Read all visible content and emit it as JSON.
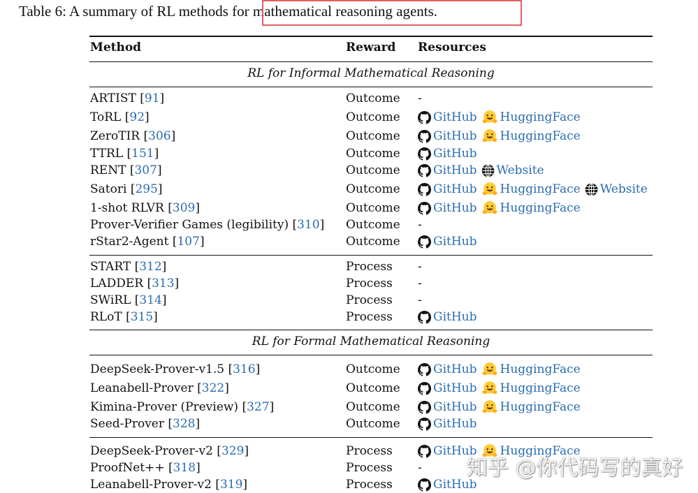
{
  "caption": "Table 6: A summary of RL methods for mathematical reasoning agents.",
  "colors": {
    "link": "#2a6cb0",
    "highlight_box": "#e06060",
    "huggingface": "#ffcc33"
  },
  "headers": {
    "method": "Method",
    "reward": "Reward",
    "resources": "Resources"
  },
  "sections": [
    {
      "title": "RL for Informal Mathematical Reasoning",
      "groups": [
        [
          {
            "method": "ARTIST",
            "ref": "91",
            "reward": "Outcome",
            "resources": []
          },
          {
            "method": "ToRL",
            "ref": "92",
            "reward": "Outcome",
            "resources": [
              {
                "type": "github",
                "label": "GitHub"
              },
              {
                "type": "huggingface",
                "label": "HuggingFace"
              }
            ]
          },
          {
            "method": "ZeroTIR",
            "ref": "306",
            "reward": "Outcome",
            "resources": [
              {
                "type": "github",
                "label": "GitHub"
              },
              {
                "type": "huggingface",
                "label": "HuggingFace"
              }
            ]
          },
          {
            "method": "TTRL",
            "ref": "151",
            "reward": "Outcome",
            "resources": [
              {
                "type": "github",
                "label": "GitHub"
              }
            ]
          },
          {
            "method": "RENT",
            "ref": "307",
            "reward": "Outcome",
            "resources": [
              {
                "type": "github",
                "label": "GitHub"
              },
              {
                "type": "website",
                "label": "Website"
              }
            ]
          },
          {
            "method": "Satori",
            "ref": "295",
            "reward": "Outcome",
            "resources": [
              {
                "type": "github",
                "label": "GitHub"
              },
              {
                "type": "huggingface",
                "label": "HuggingFace"
              },
              {
                "type": "website",
                "label": "Website"
              }
            ]
          },
          {
            "method": "1-shot RLVR",
            "ref": "309",
            "reward": "Outcome",
            "resources": [
              {
                "type": "github",
                "label": "GitHub"
              },
              {
                "type": "huggingface",
                "label": "HuggingFace"
              }
            ]
          },
          {
            "method": "Prover-Verifier Games (legibility)",
            "ref": "310",
            "reward": "Outcome",
            "resources": []
          },
          {
            "method": "rStar2-Agent",
            "ref": "107",
            "reward": "Outcome",
            "resources": [
              {
                "type": "github",
                "label": "GitHub"
              }
            ]
          }
        ],
        [
          {
            "method": "START",
            "ref": "312",
            "reward": "Process",
            "resources": []
          },
          {
            "method": "LADDER",
            "ref": "313",
            "reward": "Process",
            "resources": []
          },
          {
            "method": "SWiRL",
            "ref": "314",
            "reward": "Process",
            "resources": []
          },
          {
            "method": "RLoT",
            "ref": "315",
            "reward": "Process",
            "resources": [
              {
                "type": "github",
                "label": "GitHub"
              }
            ]
          }
        ]
      ]
    },
    {
      "title": "RL for Formal Mathematical Reasoning",
      "groups": [
        [
          {
            "method": "DeepSeek-Prover-v1.5",
            "ref": "316",
            "reward": "Outcome",
            "resources": [
              {
                "type": "github",
                "label": "GitHub"
              },
              {
                "type": "huggingface",
                "label": "HuggingFace"
              }
            ]
          },
          {
            "method": "Leanabell-Prover",
            "ref": "322",
            "reward": "Outcome",
            "resources": [
              {
                "type": "github",
                "label": "GitHub"
              },
              {
                "type": "huggingface",
                "label": "HuggingFace"
              }
            ]
          },
          {
            "method": "Kimina-Prover (Preview)",
            "ref": "327",
            "reward": "Outcome",
            "resources": [
              {
                "type": "github",
                "label": "GitHub"
              },
              {
                "type": "huggingface",
                "label": "HuggingFace"
              }
            ]
          },
          {
            "method": "Seed-Prover",
            "ref": "328",
            "reward": "Outcome",
            "resources": [
              {
                "type": "github",
                "label": "GitHub"
              }
            ]
          }
        ],
        [
          {
            "method": "DeepSeek-Prover-v2",
            "ref": "329",
            "reward": "Process",
            "resources": [
              {
                "type": "github",
                "label": "GitHub"
              },
              {
                "type": "huggingface",
                "label": "HuggingFace"
              }
            ]
          },
          {
            "method": "ProofNet++",
            "ref": "318",
            "reward": "Process",
            "resources": []
          },
          {
            "method": "Leanabell-Prover-v2",
            "ref": "319",
            "reward": "Process",
            "resources": [
              {
                "type": "github",
                "label": "GitHub"
              }
            ]
          }
        ]
      ]
    }
  ],
  "empty_marker": "-",
  "watermark": "知乎 @你代码写的真好"
}
